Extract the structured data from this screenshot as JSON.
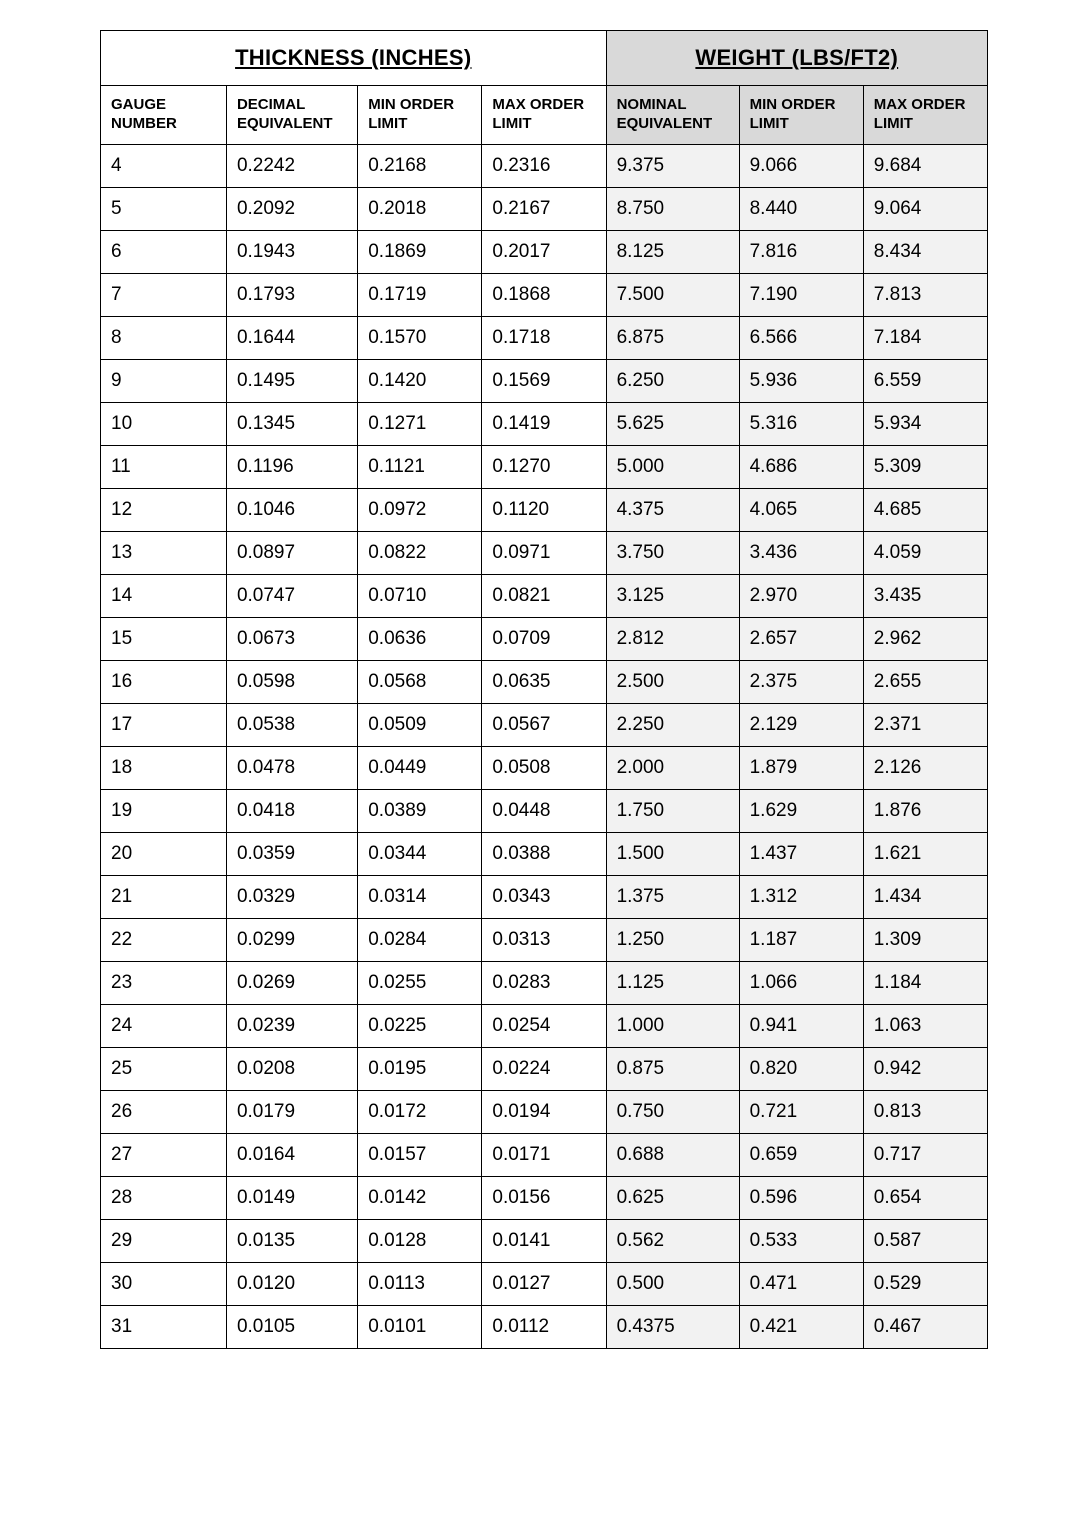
{
  "table": {
    "group_headers": {
      "thickness": "THICKNESS (INCHES)",
      "weight": "WEIGHT (LBS/FT2)"
    },
    "columns": [
      "GAUGE NUMBER",
      "DECIMAL EQUIVALENT",
      "MIN ORDER LIMIT",
      "MAX ORDER LIMIT",
      "NOMINAL EQUIVALENT",
      "MIN ORDER LIMIT",
      "MAX ORDER LIMIT"
    ],
    "shaded_start_col": 4,
    "rows": [
      [
        "4",
        "0.2242",
        "0.2168",
        "0.2316",
        "9.375",
        "9.066",
        "9.684"
      ],
      [
        "5",
        "0.2092",
        "0.2018",
        "0.2167",
        "8.750",
        "8.440",
        "9.064"
      ],
      [
        "6",
        "0.1943",
        "0.1869",
        "0.2017",
        "8.125",
        "7.816",
        "8.434"
      ],
      [
        "7",
        "0.1793",
        "0.1719",
        "0.1868",
        "7.500",
        "7.190",
        "7.813"
      ],
      [
        "8",
        "0.1644",
        "0.1570",
        "0.1718",
        "6.875",
        "6.566",
        "7.184"
      ],
      [
        "9",
        "0.1495",
        "0.1420",
        "0.1569",
        "6.250",
        "5.936",
        "6.559"
      ],
      [
        "10",
        "0.1345",
        "0.1271",
        "0.1419",
        "5.625",
        "5.316",
        "5.934"
      ],
      [
        "11",
        "0.1196",
        "0.1121",
        "0.1270",
        "5.000",
        "4.686",
        "5.309"
      ],
      [
        "12",
        "0.1046",
        "0.0972",
        "0.1120",
        "4.375",
        "4.065",
        "4.685"
      ],
      [
        "13",
        "0.0897",
        "0.0822",
        "0.0971",
        "3.750",
        "3.436",
        "4.059"
      ],
      [
        "14",
        "0.0747",
        "0.0710",
        "0.0821",
        "3.125",
        "2.970",
        "3.435"
      ],
      [
        "15",
        "0.0673",
        "0.0636",
        "0.0709",
        "2.812",
        "2.657",
        "2.962"
      ],
      [
        "16",
        "0.0598",
        "0.0568",
        "0.0635",
        "2.500",
        "2.375",
        "2.655"
      ],
      [
        "17",
        "0.0538",
        "0.0509",
        "0.0567",
        "2.250",
        "2.129",
        "2.371"
      ],
      [
        "18",
        "0.0478",
        "0.0449",
        "0.0508",
        "2.000",
        "1.879",
        "2.126"
      ],
      [
        "19",
        "0.0418",
        "0.0389",
        "0.0448",
        "1.750",
        "1.629",
        "1.876"
      ],
      [
        "20",
        "0.0359",
        "0.0344",
        "0.0388",
        "1.500",
        "1.437",
        "1.621"
      ],
      [
        "21",
        "0.0329",
        "0.0314",
        "0.0343",
        "1.375",
        "1.312",
        "1.434"
      ],
      [
        "22",
        "0.0299",
        "0.0284",
        "0.0313",
        "1.250",
        "1.187",
        "1.309"
      ],
      [
        "23",
        "0.0269",
        "0.0255",
        "0.0283",
        "1.125",
        "1.066",
        "1.184"
      ],
      [
        "24",
        "0.0239",
        "0.0225",
        "0.0254",
        "1.000",
        "0.941",
        "1.063"
      ],
      [
        "25",
        "0.0208",
        "0.0195",
        "0.0224",
        "0.875",
        "0.820",
        "0.942"
      ],
      [
        "26",
        "0.0179",
        "0.0172",
        "0.0194",
        "0.750",
        "0.721",
        "0.813"
      ],
      [
        "27",
        "0.0164",
        "0.0157",
        "0.0171",
        "0.688",
        "0.659",
        "0.717"
      ],
      [
        "28",
        "0.0149",
        "0.0142",
        "0.0156",
        "0.625",
        "0.596",
        "0.654"
      ],
      [
        "29",
        "0.0135",
        "0.0128",
        "0.0141",
        "0.562",
        "0.533",
        "0.587"
      ],
      [
        "30",
        "0.0120",
        "0.0113",
        "0.0127",
        "0.500",
        "0.471",
        "0.529"
      ],
      [
        "31",
        "0.0105",
        "0.0101",
        "0.0112",
        "0.4375",
        "0.421",
        "0.467"
      ]
    ],
    "styling": {
      "background_color": "#ffffff",
      "group_header_thickness_bg": "#ffffff",
      "group_header_weight_bg": "#d9d9d9",
      "col_header_shaded_bg": "#d9d9d9",
      "body_shaded_bg": "#f2f2f2",
      "border_color": "#000000",
      "font_family": "Arial",
      "group_header_fontsize_pt": 17,
      "col_header_fontsize_pt": 11,
      "body_fontsize_pt": 14
    }
  }
}
